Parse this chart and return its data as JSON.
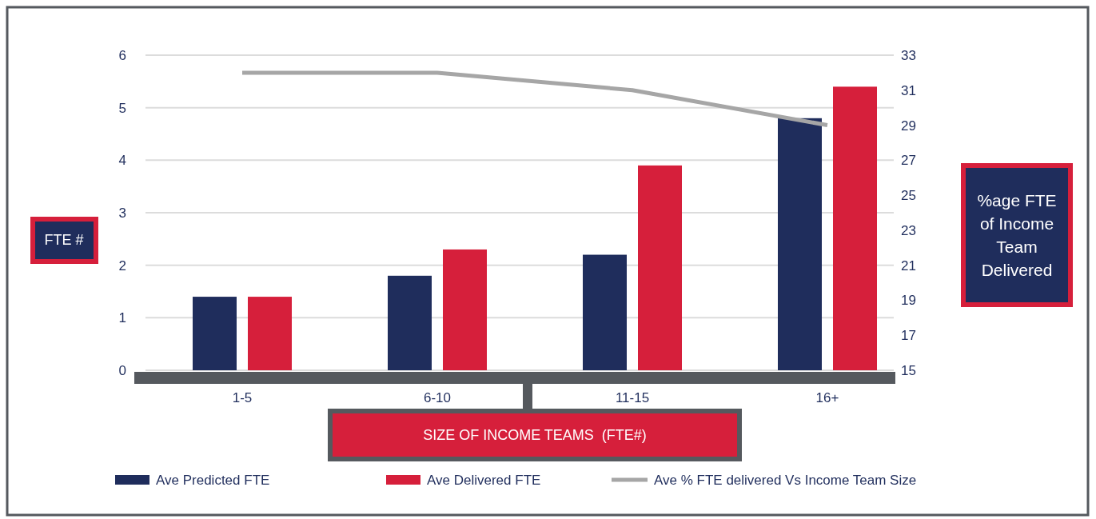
{
  "chart_data": {
    "type": "bar",
    "categories": [
      "1-5",
      "6-10",
      "11-15",
      "16+"
    ],
    "series": [
      {
        "name": "Ave Predicted FTE",
        "color": "#1f2d5c",
        "values": [
          1.4,
          1.8,
          2.2,
          4.8
        ]
      },
      {
        "name": "Ave Delivered FTE",
        "color": "#d61f3b",
        "values": [
          1.4,
          2.3,
          3.9,
          5.4
        ]
      },
      {
        "name": "Ave % FTE delivered Vs Income Team Size",
        "type": "line",
        "axis": "y2",
        "color": "#a6a6a6",
        "values": [
          32,
          32,
          31,
          29
        ]
      }
    ],
    "xlabel": "SIZE OF INCOME TEAMS  (FTE#)",
    "ylabel": "FTE #",
    "y2label": "%age FTE of Income Team Delivered",
    "ylim": [
      0,
      6
    ],
    "yticks": [
      0,
      1,
      2,
      3,
      4,
      5,
      6
    ],
    "y2lim": [
      15,
      33
    ],
    "y2ticks": [
      15,
      17,
      19,
      21,
      23,
      25,
      27,
      29,
      31,
      33
    ],
    "grid": "y",
    "legend": "bottom",
    "marker": "none",
    "line_style": "solid"
  }
}
